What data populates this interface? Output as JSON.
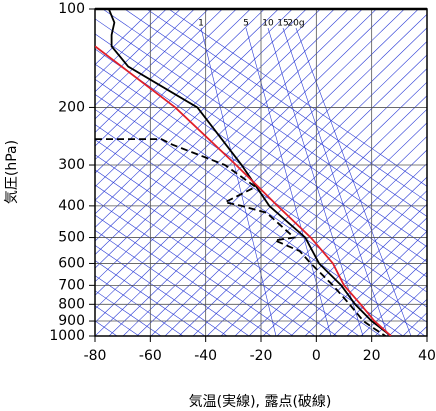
{
  "chart_data": {
    "type": "skewt",
    "xlabel": "気温(実線), 露点(破線)",
    "ylabel": "気圧(hPa)",
    "xlim": [
      -80,
      40
    ],
    "xticks": [
      -80,
      -60,
      -40,
      -20,
      0,
      20,
      40
    ],
    "ylim": [
      1000,
      100
    ],
    "yticks": [
      100,
      200,
      300,
      400,
      500,
      600,
      700,
      800,
      900,
      1000
    ],
    "ylog": true,
    "grid": true,
    "mixing_ratio_labels": [
      "1",
      "5",
      "10",
      "15",
      "20g"
    ],
    "series": [
      {
        "color": "#000000",
        "dash": false,
        "pressure": [
          100,
          110,
          120,
          130,
          150,
          200,
          300,
          400,
          500,
          600,
          700,
          800,
          900,
          1000
        ],
        "values": [
          -75,
          -73,
          -74,
          -74,
          -68,
          -43,
          -27,
          -17,
          -4,
          1,
          9,
          14,
          20,
          27
        ]
      },
      {
        "color": "#000000",
        "dash": true,
        "pressure": [
          250,
          250,
          260,
          300,
          350,
          390,
          400,
          420,
          500,
          510,
          550,
          600,
          700,
          800,
          900,
          950,
          1000
        ],
        "values": [
          -80,
          -56,
          -52,
          -33,
          -22,
          -33,
          -27,
          -18,
          -8,
          -15,
          -6,
          -2,
          6,
          12,
          17,
          21,
          25
        ]
      },
      {
        "color": "#e0202a",
        "dash": false,
        "pressure": [
          130,
          200,
          300,
          400,
          500,
          600,
          700,
          800,
          900,
          1000
        ],
        "values": [
          -80,
          -51,
          -29,
          -14,
          -2,
          6,
          10,
          16,
          21,
          27
        ]
      }
    ]
  }
}
